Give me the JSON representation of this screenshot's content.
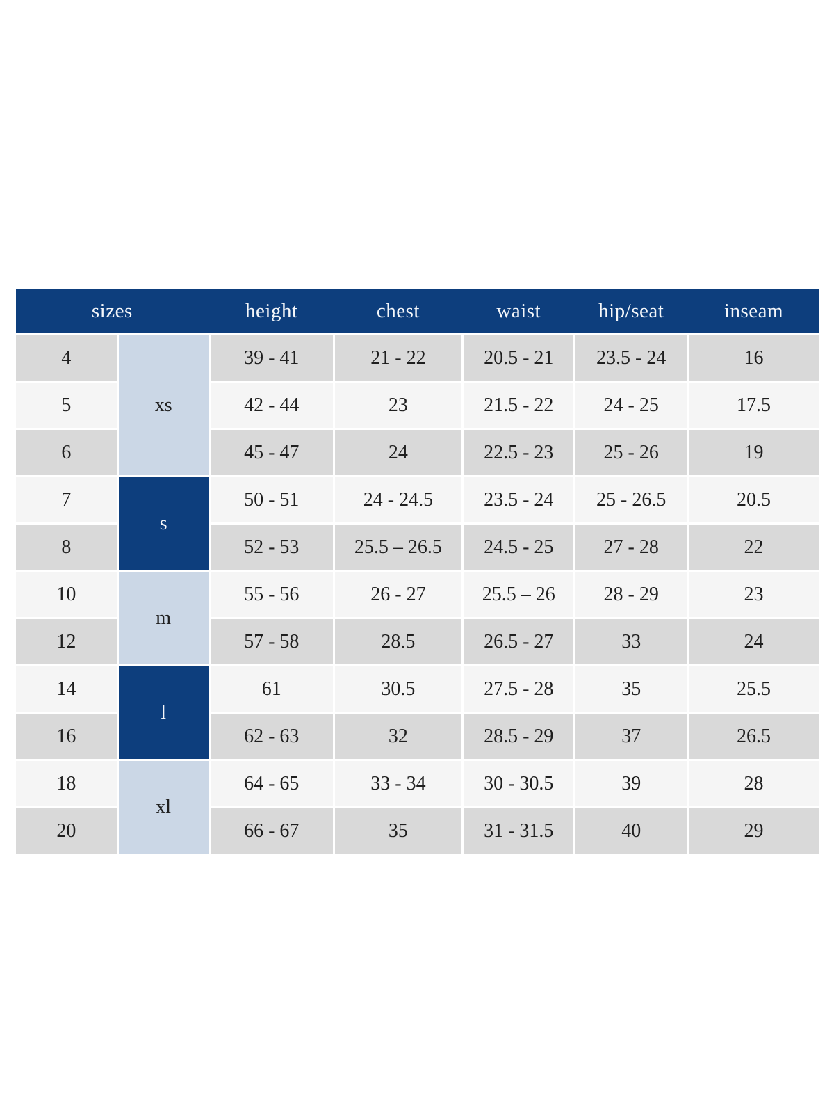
{
  "table": {
    "headers": {
      "sizes": "sizes",
      "height": "height",
      "chest": "chest",
      "waist": "waist",
      "hip_seat": "hip/seat",
      "inseam": "inseam"
    },
    "groups": [
      {
        "label": "xs",
        "rows_spanned": 3,
        "variant": "light"
      },
      {
        "label": "s",
        "rows_spanned": 2,
        "variant": "dark"
      },
      {
        "label": "m",
        "rows_spanned": 2,
        "variant": "light"
      },
      {
        "label": "l",
        "rows_spanned": 2,
        "variant": "dark"
      },
      {
        "label": "xl",
        "rows_spanned": 2,
        "variant": "light"
      }
    ],
    "rows": [
      {
        "size": "4",
        "group": "xs",
        "height": "39 - 41",
        "chest": "21 - 22",
        "waist": "20.5 - 21",
        "hip_seat": "23.5 - 24",
        "inseam": "16"
      },
      {
        "size": "5",
        "group": "xs",
        "height": "42 - 44",
        "chest": "23",
        "waist": "21.5 - 22",
        "hip_seat": "24 - 25",
        "inseam": "17.5"
      },
      {
        "size": "6",
        "group": "xs",
        "height": "45 - 47",
        "chest": "24",
        "waist": "22.5 - 23",
        "hip_seat": "25 - 26",
        "inseam": "19"
      },
      {
        "size": "7",
        "group": "s",
        "height": "50 - 51",
        "chest": "24 - 24.5",
        "waist": "23.5 - 24",
        "hip_seat": "25 - 26.5",
        "inseam": "20.5"
      },
      {
        "size": "8",
        "group": "s",
        "height": "52 - 53",
        "chest": "25.5 – 26.5",
        "waist": "24.5 - 25",
        "hip_seat": "27 - 28",
        "inseam": "22"
      },
      {
        "size": "10",
        "group": "m",
        "height": "55 - 56",
        "chest": "26 - 27",
        "waist": "25.5 – 26",
        "hip_seat": "28 - 29",
        "inseam": "23"
      },
      {
        "size": "12",
        "group": "m",
        "height": "57 - 58",
        "chest": "28.5",
        "waist": "26.5 - 27",
        "hip_seat": "33",
        "inseam": "24"
      },
      {
        "size": "14",
        "group": "l",
        "height": "61",
        "chest": "30.5",
        "waist": "27.5 - 28",
        "hip_seat": "35",
        "inseam": "25.5"
      },
      {
        "size": "16",
        "group": "l",
        "height": "62 - 63",
        "chest": "32",
        "waist": "28.5 - 29",
        "hip_seat": "37",
        "inseam": "26.5"
      },
      {
        "size": "18",
        "group": "xl",
        "height": "64 - 65",
        "chest": "33 - 34",
        "waist": "30 - 30.5",
        "hip_seat": "39",
        "inseam": "28"
      },
      {
        "size": "20",
        "group": "xl",
        "height": "66 - 67",
        "chest": "35",
        "waist": "31 - 31.5",
        "hip_seat": "40",
        "inseam": "29"
      }
    ],
    "colors": {
      "header_bg": "#0d3e7d",
      "header_text": "#f5f7fa",
      "group_dark_bg": "#0d3e7d",
      "group_light_bg": "#cbd7e6",
      "row_gray": "#d9d9d9",
      "row_light": "#f5f5f5",
      "body_text": "#1f1f1f",
      "page_bg": "#ffffff"
    }
  }
}
